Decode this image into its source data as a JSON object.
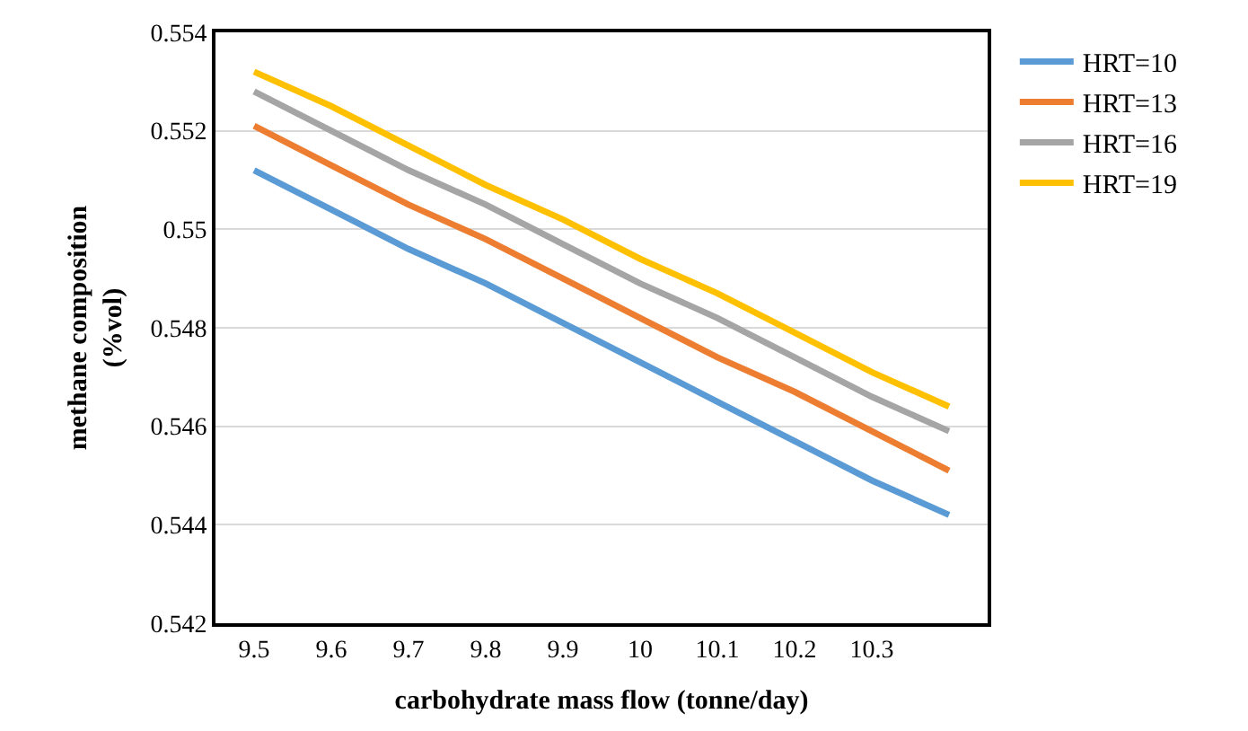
{
  "chart_data": {
    "type": "line",
    "xlabel": "carbohydrate mass flow (tonne/day)",
    "ylabel": "methane composition\n(%vol)",
    "categories": [
      "9.5",
      "9.6",
      "9.7",
      "9.8",
      "9.9",
      "10",
      "10.1",
      "10.2",
      "10.3",
      null
    ],
    "series": [
      {
        "name": "HRT=10",
        "color": "#5b9bd5",
        "values": [
          0.5512,
          0.5504,
          0.5496,
          0.5489,
          0.5481,
          0.5473,
          0.5465,
          0.5457,
          0.5449,
          0.5442
        ]
      },
      {
        "name": "HRT=13",
        "color": "#ed7d31",
        "values": [
          0.5521,
          0.5513,
          0.5505,
          0.5498,
          0.549,
          0.5482,
          0.5474,
          0.5467,
          0.5459,
          0.5451
        ]
      },
      {
        "name": "HRT=16",
        "color": "#a5a5a5",
        "values": [
          0.5528,
          0.552,
          0.5512,
          0.5505,
          0.5497,
          0.5489,
          0.5482,
          0.5474,
          0.5466,
          0.5459
        ]
      },
      {
        "name": "HRT=19",
        "color": "#ffc000",
        "values": [
          0.5532,
          0.5525,
          0.5517,
          0.5509,
          0.5502,
          0.5494,
          0.5487,
          0.5479,
          0.5471,
          0.5464
        ]
      }
    ],
    "ylim": [
      0.542,
      0.554
    ],
    "yticks": [
      0.542,
      0.544,
      0.546,
      0.548,
      0.55,
      0.552,
      0.554
    ],
    "grid": "y",
    "legend": "top right",
    "marker": "none",
    "line_style": "solid"
  }
}
